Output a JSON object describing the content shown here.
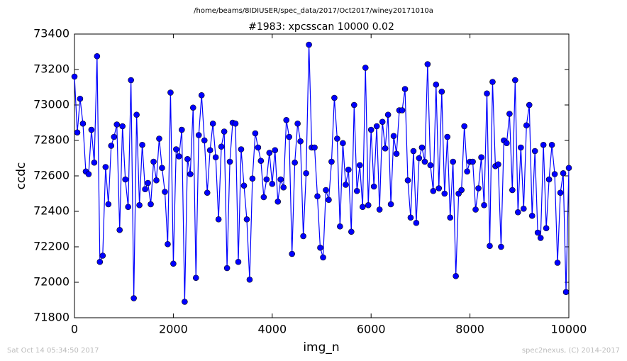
{
  "chart_data": {
    "type": "line",
    "subtitle": "/home/beams/8IDIUSER/spec_data/2017/Oct2017/winey20171010a",
    "title": "#1983: xpcsscan 10000 0.02",
    "xlabel": "img_n",
    "ylabel": "ccdc",
    "annotations": [
      "Sat Oct 14 05:34:50 2017",
      "spec2nexus, (C) 2014-2017"
    ],
    "color": "#0000ff",
    "marker_edge": "#000000",
    "xlim": [
      0,
      10000
    ],
    "xticks": [
      0,
      2000,
      4000,
      6000,
      8000,
      10000
    ],
    "ylim": [
      71800,
      73400
    ],
    "yticks": [
      71800,
      72000,
      72200,
      72400,
      72600,
      72800,
      73000,
      73200,
      73400
    ],
    "grid": false,
    "x": [
      0,
      57,
      114,
      171,
      229,
      286,
      343,
      400,
      457,
      514,
      571,
      629,
      686,
      743,
      800,
      857,
      914,
      971,
      1029,
      1086,
      1143,
      1200,
      1257,
      1314,
      1371,
      1429,
      1486,
      1543,
      1600,
      1657,
      1714,
      1771,
      1829,
      1886,
      1943,
      2000,
      2057,
      2114,
      2171,
      2229,
      2286,
      2343,
      2400,
      2457,
      2514,
      2571,
      2629,
      2686,
      2743,
      2800,
      2857,
      2914,
      2971,
      3029,
      3086,
      3143,
      3200,
      3257,
      3314,
      3371,
      3429,
      3486,
      3543,
      3600,
      3657,
      3714,
      3771,
      3829,
      3886,
      3943,
      4000,
      4057,
      4114,
      4171,
      4229,
      4286,
      4343,
      4400,
      4457,
      4514,
      4571,
      4629,
      4686,
      4743,
      4800,
      4857,
      4914,
      4971,
      5029,
      5086,
      5143,
      5200,
      5257,
      5314,
      5371,
      5429,
      5486,
      5543,
      5600,
      5657,
      5714,
      5771,
      5829,
      5886,
      5943,
      6000,
      6057,
      6114,
      6171,
      6229,
      6286,
      6343,
      6400,
      6457,
      6514,
      6571,
      6629,
      6686,
      6743,
      6800,
      6857,
      6914,
      6971,
      7029,
      7086,
      7143,
      7200,
      7257,
      7314,
      7371,
      7429,
      7486,
      7543,
      7600,
      7657,
      7714,
      7771,
      7829,
      7886,
      7943,
      8000,
      8057,
      8114,
      8171,
      8229,
      8286,
      8343,
      8400,
      8457,
      8514,
      8571,
      8629,
      8686,
      8743,
      8800,
      8857,
      8914,
      8971,
      9029,
      9086,
      9143,
      9200,
      9257,
      9314,
      9371,
      9429,
      9486,
      9543,
      9600,
      9657,
      9714,
      9771,
      9829,
      9886,
      9943,
      10000
    ],
    "values": [
      73160,
      72845,
      73035,
      72895,
      72625,
      72610,
      72860,
      72675,
      73275,
      72115,
      72150,
      72650,
      72440,
      72770,
      72820,
      72890,
      72295,
      72880,
      72580,
      72425,
      73140,
      71910,
      72945,
      72435,
      72775,
      72525,
      72560,
      72440,
      72680,
      72575,
      72810,
      72645,
      72510,
      72215,
      73070,
      72105,
      72750,
      72710,
      72860,
      71890,
      72695,
      72610,
      72985,
      72025,
      72830,
      73055,
      72800,
      72505,
      72745,
      72895,
      72705,
      72355,
      72765,
      72850,
      72080,
      72680,
      72900,
      72895,
      72115,
      72750,
      72545,
      72355,
      72015,
      72585,
      72840,
      72760,
      72685,
      72480,
      72580,
      72730,
      72555,
      72745,
      72455,
      72580,
      72535,
      72915,
      72820,
      72160,
      72675,
      72895,
      72795,
      72260,
      72615,
      73340,
      72760,
      72760,
      72485,
      72195,
      72140,
      72520,
      72465,
      72680,
      73040,
      72810,
      72315,
      72785,
      72550,
      72635,
      72285,
      73000,
      72515,
      72660,
      72425,
      73210,
      72435,
      72860,
      72540,
      72880,
      72410,
      72905,
      72755,
      72945,
      72440,
      72825,
      72725,
      72970,
      72970,
      73090,
      72575,
      72365,
      72740,
      72335,
      72700,
      72760,
      72680,
      73230,
      72660,
      72515,
      73115,
      72530,
      73075,
      72500,
      72820,
      72365,
      72680,
      72035,
      72500,
      72520,
      72880,
      72625,
      72680,
      72680,
      72410,
      72530,
      72705,
      72435,
      73065,
      72205,
      73130,
      72655,
      72665,
      72200,
      72800,
      72785,
      72950,
      72520,
      73140,
      72395,
      72760,
      72415,
      72885,
      73000,
      72375,
      72740,
      72280,
      72250,
      72775,
      72305,
      72580,
      72775,
      72610,
      72110,
      72505,
      72615,
      71945,
      72645
    ]
  }
}
